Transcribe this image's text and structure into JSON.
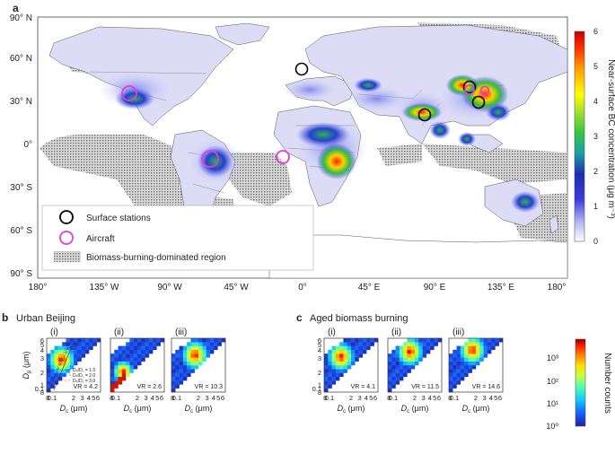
{
  "panel_a": {
    "label": "a",
    "lat_ticks": [
      "90° N",
      "60° N",
      "30° N",
      "0°",
      "30° S",
      "60° S",
      "90° S"
    ],
    "lon_ticks": [
      "180°",
      "135° W",
      "90° W",
      "45° W",
      "0°",
      "45° E",
      "90° E",
      "135° E",
      "180°"
    ],
    "legend": {
      "surface": "Surface stations",
      "aircraft": "Aircraft",
      "biomass": "Biomass-burning-dominated region"
    },
    "colorbar": {
      "ticks": [
        "0",
        "1",
        "2",
        "3",
        "4",
        "5",
        "6"
      ],
      "label": "Near-surface BC concentration (μg m⁻³)"
    },
    "colors": {
      "surface_marker": "#000000",
      "aircraft_marker": "#e83ad6",
      "ocean": "#ffffff"
    }
  },
  "panel_b": {
    "label": "b",
    "title": "Urban Beijing"
  },
  "panel_c": {
    "label": "c",
    "title": "Aged biomass burning"
  },
  "heatmap_axes": {
    "y_ticks": [
      "6",
      "5",
      "4",
      "3",
      "2",
      "1",
      "0.1",
      "8"
    ],
    "x_ticks": [
      "8",
      "0.1",
      "2",
      "3",
      "4",
      "5",
      "6"
    ],
    "y_label_main": "D",
    "y_label_sub": "p",
    "y_label_unit": " (μm)",
    "x_label_main": "D",
    "x_label_sub": "c",
    "x_label_unit": " (μm)"
  },
  "beijing_lines": [
    "Dₚ/D꜀ = 1.5",
    "Dₚ/D꜀ = 2.0",
    "Dₚ/D꜀ = 3.0"
  ],
  "number_colorbar": {
    "label": "Number counts",
    "ticks": [
      "10³",
      "10²",
      "10¹",
      "10⁰"
    ]
  },
  "chart_data": [
    {
      "type": "heatmap",
      "title": "(i)",
      "panel": "Urban Beijing",
      "annotation": "VR = 4.2",
      "peak_dc_um": 0.13,
      "peak_dp_um": 0.25
    },
    {
      "type": "heatmap",
      "title": "(ii)",
      "panel": "Urban Beijing",
      "annotation": "VR = 2.6",
      "peak_dc_um": 0.12,
      "peak_dp_um": 0.16
    },
    {
      "type": "heatmap",
      "title": "(iii)",
      "panel": "Urban Beijing",
      "annotation": "VR = 10.3",
      "peak_dc_um": 0.18,
      "peak_dp_um": 0.3
    },
    {
      "type": "heatmap",
      "title": "(i)",
      "panel": "Aged biomass burning",
      "annotation": "VR = 4.1",
      "peak_dc_um": 0.14,
      "peak_dp_um": 0.28
    },
    {
      "type": "heatmap",
      "title": "(ii)",
      "panel": "Aged biomass burning",
      "annotation": "VR = 11.5",
      "peak_dc_um": 0.17,
      "peak_dp_um": 0.34
    },
    {
      "type": "heatmap",
      "title": "(iii)",
      "panel": "Aged biomass burning",
      "annotation": "VR = 14.6",
      "peak_dc_um": 0.18,
      "peak_dp_um": 0.36
    }
  ]
}
